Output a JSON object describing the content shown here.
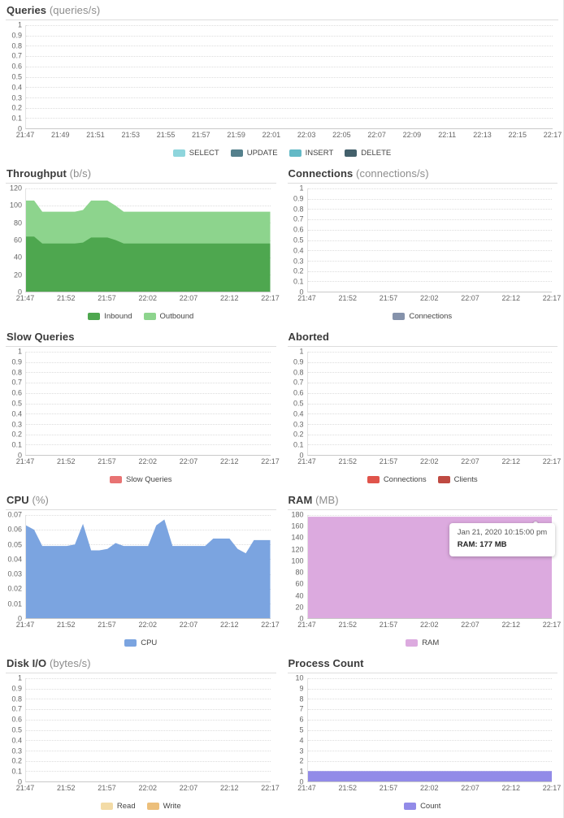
{
  "tooltip": {
    "line1": "Jan 21, 2020 10:15:00 pm",
    "line2": "RAM: 177 MB"
  },
  "chart_data": [
    {
      "type": "area",
      "title": "Queries",
      "unit": "(queries/s)",
      "ylim": [
        0,
        1
      ],
      "grid": "dotted-horizontal",
      "legend_position": "bottom",
      "y_ticks": [
        "1",
        "0.9",
        "0.8",
        "0.7",
        "0.6",
        "0.5",
        "0.4",
        "0.3",
        "0.2",
        "0.1",
        "0"
      ],
      "x_labels": [
        "21:47",
        "21:49",
        "21:51",
        "21:53",
        "21:55",
        "21:57",
        "21:59",
        "22:01",
        "22:03",
        "22:05",
        "22:07",
        "22:09",
        "22:11",
        "22:13",
        "22:15",
        "22:17"
      ],
      "stacked": false,
      "series": [
        {
          "name": "SELECT",
          "color": "#8ed5dc",
          "values": []
        },
        {
          "name": "UPDATE",
          "color": "#54808c",
          "values": []
        },
        {
          "name": "INSERT",
          "color": "#63b9c6",
          "values": []
        },
        {
          "name": "DELETE",
          "color": "#43606b",
          "values": []
        }
      ]
    },
    {
      "type": "area",
      "title": "Throughput",
      "unit": "(b/s)",
      "ylim": [
        0,
        120
      ],
      "grid": "dotted-horizontal",
      "legend_position": "bottom",
      "y_ticks": [
        "120",
        "100",
        "80",
        "60",
        "40",
        "20",
        "0"
      ],
      "x_labels": [
        "21:47",
        "21:52",
        "21:57",
        "22:02",
        "22:07",
        "22:12",
        "22:17"
      ],
      "x_start": "21:47",
      "x_end": "22:17",
      "x_interval_minutes": 1,
      "stacked": true,
      "series": [
        {
          "name": "Inbound",
          "color": "#4ea74f",
          "values": [
            64,
            64,
            56,
            56,
            56,
            56,
            56,
            57,
            63,
            63,
            63,
            60,
            56,
            56,
            56,
            56,
            56,
            56,
            56,
            56,
            56,
            56,
            56,
            56,
            56,
            56,
            56,
            56,
            56,
            56,
            56
          ]
        },
        {
          "name": "Outbound",
          "color": "#8dd48d",
          "values": [
            42,
            42,
            37,
            37,
            37,
            37,
            37,
            38,
            43,
            43,
            43,
            40,
            37,
            37,
            37,
            37,
            37,
            37,
            37,
            37,
            37,
            37,
            37,
            37,
            37,
            37,
            37,
            37,
            37,
            37,
            37
          ]
        }
      ]
    },
    {
      "type": "area",
      "title": "Connections",
      "unit": "(connections/s)",
      "ylim": [
        0,
        1
      ],
      "grid": "dotted-horizontal",
      "legend_position": "bottom",
      "y_ticks": [
        "1",
        "0.9",
        "0.8",
        "0.7",
        "0.6",
        "0.5",
        "0.4",
        "0.3",
        "0.2",
        "0.1",
        "0"
      ],
      "x_labels": [
        "21:47",
        "21:52",
        "21:57",
        "22:02",
        "22:07",
        "22:12",
        "22:17"
      ],
      "stacked": false,
      "series": [
        {
          "name": "Connections",
          "color": "#8592ab",
          "values": []
        }
      ]
    },
    {
      "type": "area",
      "title": "Slow Queries",
      "unit": "",
      "ylim": [
        0,
        1
      ],
      "grid": "dotted-horizontal",
      "legend_position": "bottom",
      "y_ticks": [
        "1",
        "0.9",
        "0.8",
        "0.7",
        "0.6",
        "0.5",
        "0.4",
        "0.3",
        "0.2",
        "0.1",
        "0"
      ],
      "x_labels": [
        "21:47",
        "21:52",
        "21:57",
        "22:02",
        "22:07",
        "22:12",
        "22:17"
      ],
      "stacked": false,
      "series": [
        {
          "name": "Slow Queries",
          "color": "#e87373",
          "values": []
        }
      ]
    },
    {
      "type": "area",
      "title": "Aborted",
      "unit": "",
      "ylim": [
        0,
        1
      ],
      "grid": "dotted-horizontal",
      "legend_position": "bottom",
      "y_ticks": [
        "1",
        "0.9",
        "0.8",
        "0.7",
        "0.6",
        "0.5",
        "0.4",
        "0.3",
        "0.2",
        "0.1",
        "0"
      ],
      "x_labels": [
        "21:47",
        "21:52",
        "21:57",
        "22:02",
        "22:07",
        "22:12",
        "22:17"
      ],
      "stacked": false,
      "series": [
        {
          "name": "Connections",
          "color": "#e0544b",
          "values": []
        },
        {
          "name": "Clients",
          "color": "#bf4a42",
          "values": []
        }
      ]
    },
    {
      "type": "area",
      "title": "CPU",
      "unit": "(%)",
      "ylim": [
        0,
        0.07
      ],
      "grid": "dotted-horizontal",
      "legend_position": "bottom",
      "y_ticks": [
        "0.07",
        "0.06",
        "0.05",
        "0.04",
        "0.03",
        "0.02",
        "0.01",
        "0"
      ],
      "x_labels": [
        "21:47",
        "21:52",
        "21:57",
        "22:02",
        "22:07",
        "22:12",
        "22:17"
      ],
      "x_start": "21:47",
      "x_end": "22:17",
      "x_interval_minutes": 1,
      "stacked": false,
      "series": [
        {
          "name": "CPU",
          "color": "#7ba4e0",
          "values": [
            0.063,
            0.06,
            0.049,
            0.049,
            0.049,
            0.049,
            0.05,
            0.064,
            0.046,
            0.046,
            0.047,
            0.051,
            0.049,
            0.049,
            0.049,
            0.049,
            0.063,
            0.067,
            0.049,
            0.049,
            0.049,
            0.049,
            0.049,
            0.054,
            0.054,
            0.054,
            0.047,
            0.044,
            0.053,
            0.053,
            0.053
          ]
        }
      ]
    },
    {
      "type": "area",
      "title": "RAM",
      "unit": "(MB)",
      "ylim": [
        0,
        180
      ],
      "grid": "dotted-horizontal",
      "legend_position": "bottom",
      "y_ticks": [
        "180",
        "160",
        "140",
        "120",
        "100",
        "80",
        "60",
        "40",
        "20",
        "0"
      ],
      "x_labels": [
        "21:47",
        "21:52",
        "21:57",
        "22:02",
        "22:07",
        "22:12",
        "22:17"
      ],
      "x_start": "21:47",
      "x_end": "22:17",
      "x_interval_minutes": 1,
      "stacked": false,
      "series": [
        {
          "name": "RAM",
          "color": "#dcaadf",
          "values": [
            177,
            177,
            177,
            177,
            177,
            177,
            177,
            177,
            177,
            177,
            177,
            177,
            177,
            177,
            177,
            177,
            177,
            177,
            177,
            177,
            177,
            177,
            177,
            177,
            177,
            177,
            177,
            177,
            177,
            177,
            177
          ]
        }
      ]
    },
    {
      "type": "area",
      "title": "Disk I/O",
      "unit": "(bytes/s)",
      "ylim": [
        0,
        1
      ],
      "grid": "dotted-horizontal",
      "legend_position": "bottom",
      "y_ticks": [
        "1",
        "0.9",
        "0.8",
        "0.7",
        "0.6",
        "0.5",
        "0.4",
        "0.3",
        "0.2",
        "0.1",
        "0"
      ],
      "x_labels": [
        "21:47",
        "21:52",
        "21:57",
        "22:02",
        "22:07",
        "22:12",
        "22:17"
      ],
      "stacked": false,
      "series": [
        {
          "name": "Read",
          "color": "#f3dba6",
          "values": []
        },
        {
          "name": "Write",
          "color": "#ecbf7b",
          "values": []
        }
      ]
    },
    {
      "type": "area",
      "title": "Process Count",
      "unit": "",
      "ylim": [
        0,
        10
      ],
      "grid": "dotted-horizontal",
      "legend_position": "bottom",
      "y_ticks": [
        "10",
        "9",
        "8",
        "7",
        "6",
        "5",
        "4",
        "3",
        "2",
        "1",
        "0"
      ],
      "x_labels": [
        "21:47",
        "21:52",
        "21:57",
        "22:02",
        "22:07",
        "22:12",
        "22:17"
      ],
      "x_start": "21:47",
      "x_end": "22:17",
      "x_interval_minutes": 1,
      "stacked": false,
      "series": [
        {
          "name": "Count",
          "color": "#928be8",
          "values": [
            1,
            1,
            1,
            1,
            1,
            1,
            1,
            1,
            1,
            1,
            1,
            1,
            1,
            1,
            1,
            1,
            1,
            1,
            1,
            1,
            1,
            1,
            1,
            1,
            1,
            1,
            1,
            1,
            1,
            1,
            1
          ]
        }
      ]
    }
  ]
}
